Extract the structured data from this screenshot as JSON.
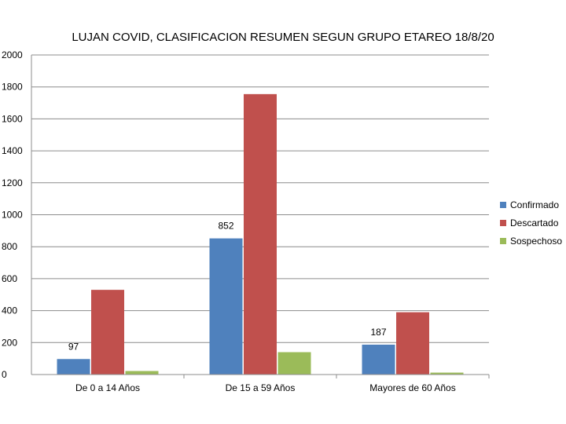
{
  "chart_data": {
    "type": "bar",
    "title": "LUJAN COVID, CLASIFICACION RESUMEN SEGUN GRUPO ETAREO  18/8/20",
    "xlabel": "",
    "ylabel": "",
    "categories": [
      "De 0 a 14 Años",
      "De 15 a 59 Años",
      "Mayores de 60 Años"
    ],
    "series": [
      {
        "name": "Confirmado",
        "values": [
          97,
          852,
          187
        ],
        "color": "#4f81bd",
        "data_labels": [
          "97",
          "852",
          "187"
        ]
      },
      {
        "name": "Descartado",
        "values": [
          530,
          1755,
          390
        ],
        "color": "#c0504d"
      },
      {
        "name": "Sospechoso",
        "values": [
          22,
          140,
          12
        ],
        "color": "#9bbb59"
      }
    ],
    "ylim": [
      0,
      2000
    ],
    "yticks": [
      "0",
      "200",
      "400",
      "600",
      "800",
      "1000",
      "1200",
      "1400",
      "1600",
      "1800",
      "2000"
    ],
    "grid": true,
    "legend_position": "right"
  }
}
